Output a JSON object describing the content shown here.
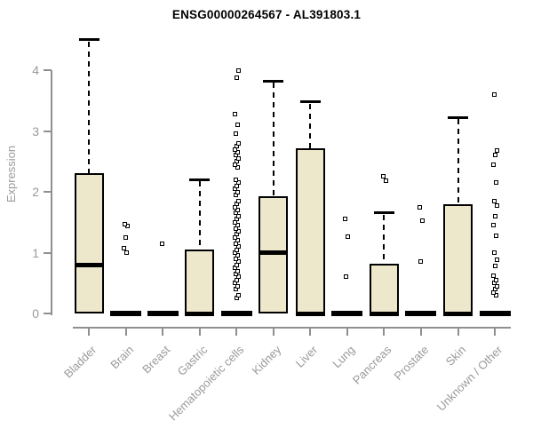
{
  "title": "ENSG00000264567 - AL391803.1",
  "colors": {
    "box_fill": "#EDE7CC",
    "box_stroke": "#000000",
    "axis": "#8f8f8f",
    "tick_label": "#9a9a9a",
    "title": "#000000",
    "background": "#ffffff"
  },
  "chart_data": {
    "type": "boxplot",
    "title": "ENSG00000264567 - AL391803.1",
    "xlabel": "",
    "ylabel": "Expression",
    "ylim": [
      0,
      4.6
    ],
    "yticks": [
      0,
      1,
      2,
      3,
      4
    ],
    "grid": false,
    "legend": "none",
    "categories": [
      "Bladder",
      "Brain",
      "Breast",
      "Gastric",
      "Hematopoietic cells",
      "Kidney",
      "Liver",
      "Lung",
      "Pancreas",
      "Prostate",
      "Skin",
      "Unknown / Other"
    ],
    "series": [
      {
        "category": "Bladder",
        "q1": 0,
        "median": 0.8,
        "q3": 2.3,
        "whisker_low": 0,
        "whisker_high": 4.5,
        "outliers": []
      },
      {
        "category": "Brain",
        "q1": 0,
        "median": 0,
        "q3": 0,
        "whisker_low": 0,
        "whisker_high": 0,
        "outliers": [
          1.0,
          1.07,
          1.25,
          1.44,
          1.47
        ]
      },
      {
        "category": "Breast",
        "q1": 0,
        "median": 0,
        "q3": 0,
        "whisker_low": 0,
        "whisker_high": 0,
        "outliers": [
          1.15
        ]
      },
      {
        "category": "Gastric",
        "q1": 0,
        "median": 0,
        "q3": 1.05,
        "whisker_low": 0,
        "whisker_high": 2.2,
        "outliers": []
      },
      {
        "category": "Hematopoietic cells",
        "q1": 0,
        "median": 0,
        "q3": 0,
        "whisker_low": 0,
        "whisker_high": 0,
        "outliers": [
          0.25,
          0.3,
          0.4,
          0.45,
          0.5,
          0.55,
          0.6,
          0.65,
          0.7,
          0.75,
          0.8,
          0.85,
          0.9,
          0.95,
          1.0,
          1.05,
          1.1,
          1.15,
          1.2,
          1.25,
          1.3,
          1.35,
          1.4,
          1.45,
          1.5,
          1.55,
          1.6,
          1.65,
          1.7,
          1.75,
          1.8,
          1.85,
          1.95,
          2.0,
          2.05,
          2.1,
          2.15,
          2.2,
          2.4,
          2.45,
          2.5,
          2.55,
          2.6,
          2.65,
          2.7,
          2.75,
          2.8,
          2.95,
          3.1,
          3.28,
          3.88,
          4.0
        ]
      },
      {
        "category": "Kidney",
        "q1": 0,
        "median": 1.0,
        "q3": 1.93,
        "whisker_low": 0,
        "whisker_high": 3.82,
        "outliers": []
      },
      {
        "category": "Liver",
        "q1": 0,
        "median": 0,
        "q3": 2.72,
        "whisker_low": 0,
        "whisker_high": 3.48,
        "outliers": []
      },
      {
        "category": "Lung",
        "q1": 0,
        "median": 0,
        "q3": 0,
        "whisker_low": 0,
        "whisker_high": 0,
        "outliers": [
          0.6,
          1.26,
          1.55
        ]
      },
      {
        "category": "Pancreas",
        "q1": 0,
        "median": 0,
        "q3": 0.82,
        "whisker_low": 0,
        "whisker_high": 1.65,
        "outliers": [
          2.18,
          2.25
        ]
      },
      {
        "category": "Prostate",
        "q1": 0,
        "median": 0,
        "q3": 0,
        "whisker_low": 0,
        "whisker_high": 0,
        "outliers": [
          0.85,
          1.53,
          1.75
        ]
      },
      {
        "category": "Skin",
        "q1": 0,
        "median": 0,
        "q3": 1.8,
        "whisker_low": 0,
        "whisker_high": 3.22,
        "outliers": []
      },
      {
        "category": "Unknown / Other",
        "q1": 0,
        "median": 0,
        "q3": 0,
        "whisker_low": 0,
        "whisker_high": 0,
        "outliers": [
          0.3,
          0.35,
          0.4,
          0.45,
          0.5,
          0.55,
          0.62,
          0.78,
          0.88,
          1.0,
          1.28,
          1.45,
          1.6,
          1.78,
          1.85,
          2.15,
          2.45,
          2.6,
          2.68,
          3.6
        ]
      }
    ]
  }
}
